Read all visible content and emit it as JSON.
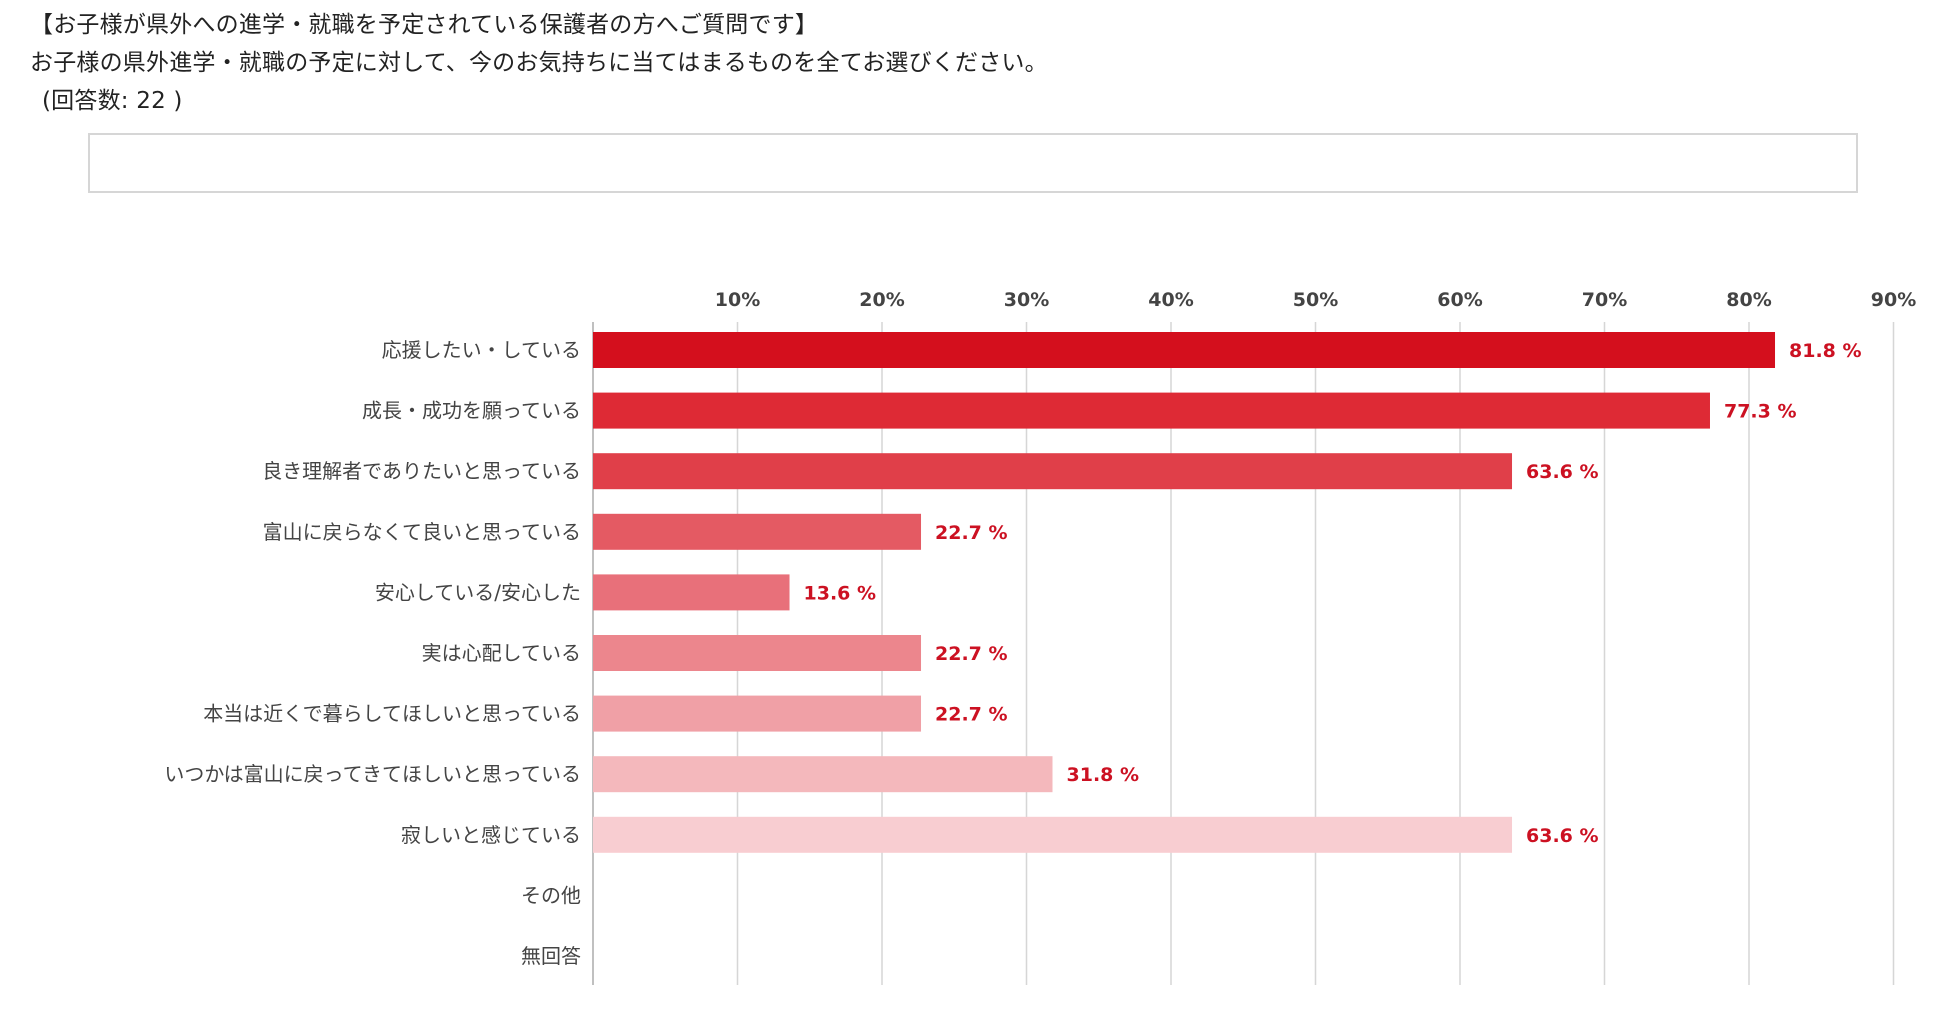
{
  "header": {
    "line1": "【お子様が県外への進学・就職を予定されている保護者の方へご質問です】",
    "line2": "お子様の県外進学・就職の予定に対して、今のお気持ちに当てはまるものを全てお選びください。",
    "line3": "(回答数: 22 )"
  },
  "chart_data": {
    "type": "bar",
    "orientation": "horizontal",
    "xlim": [
      0,
      90
    ],
    "ticks": [
      10,
      20,
      30,
      40,
      50,
      60,
      70,
      80,
      90
    ],
    "tick_labels": [
      "10%",
      "20%",
      "30%",
      "40%",
      "50%",
      "60%",
      "70%",
      "80%",
      "90%"
    ],
    "grid": true,
    "categories": [
      "応援したい・している",
      "成長・成功を願っている",
      "良き理解者でありたいと思っている",
      "富山に戻らなくて良いと思っている",
      "安心している/安心した",
      "実は心配している",
      "本当は近くで暮らしてほしいと思っている",
      "いつかは富山に戻ってきてほしいと思っている",
      "寂しいと感じている",
      "その他",
      "無回答"
    ],
    "values": [
      81.8,
      77.3,
      63.6,
      22.7,
      13.6,
      22.7,
      22.7,
      31.8,
      63.6,
      0,
      0
    ],
    "value_labels": [
      "81.8 %",
      "77.3 %",
      "63.6 %",
      "22.7 %",
      "13.6 %",
      "22.7 %",
      "22.7 %",
      "31.8 %",
      "63.6 %",
      "",
      ""
    ],
    "colors": [
      "#d40f1d",
      "#de2a35",
      "#e03f49",
      "#e45a63",
      "#e8707a",
      "#ec868d",
      "#f0a0a6",
      "#f4b8bc",
      "#f8cdd1",
      "#f8cdd1",
      "#f8cdd1"
    ],
    "value_label_color": "#cc1122",
    "grid_color": "#d6d6d6",
    "axis_color": "#c0c0c0"
  }
}
